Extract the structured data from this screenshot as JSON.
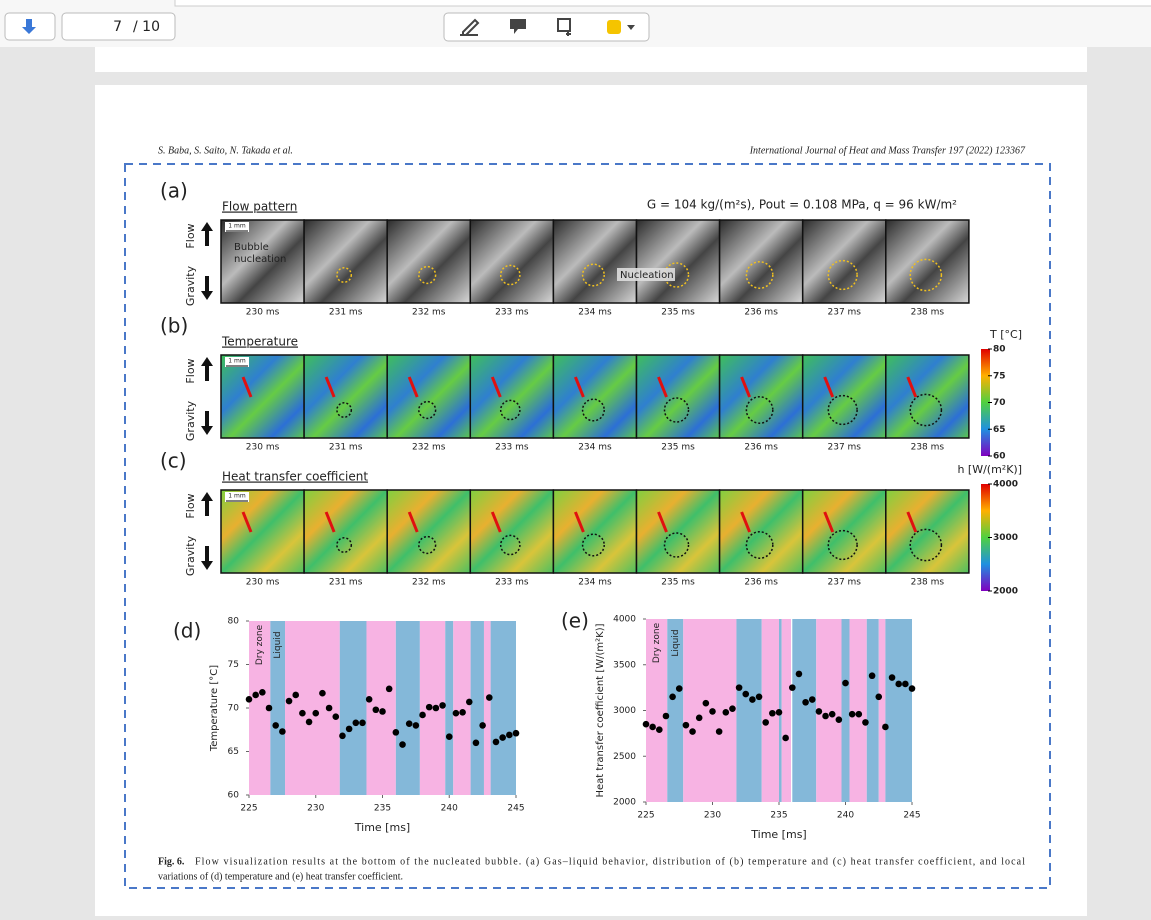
{
  "toolbar": {
    "page": "7",
    "page_count": "/ 10"
  },
  "header": {
    "authors": "S. Baba, S. Saito, N. Takada et al.",
    "journal": "International Journal of Heat and Mass Transfer 197 (2022) 123367"
  },
  "conditions": "G = 104 kg/(m²s), Pout = 0.108 MPa, q = 96 kW/m²",
  "direction_labels": {
    "flow": "Flow",
    "gravity": "Gravity"
  },
  "scale_bar": "1 mm",
  "annotations": {
    "bubble_nucleation": [
      "Bubble",
      "nucleation"
    ],
    "nucleation": "Nucleation"
  },
  "panels": [
    {
      "label": "(a)",
      "title": "Flow pattern",
      "times": [
        "230 ms",
        "231 ms",
        "232 ms",
        "233 ms",
        "234 ms",
        "235 ms",
        "236 ms",
        "237 ms",
        "238 ms"
      ]
    },
    {
      "label": "(b)",
      "title": "Temperature",
      "times": [
        "230 ms",
        "231 ms",
        "232 ms",
        "233 ms",
        "234 ms",
        "235 ms",
        "236 ms",
        "237 ms",
        "238 ms"
      ],
      "colorbar": {
        "title": "T [°C]",
        "lim": [
          60,
          80
        ],
        "ticks": [
          80,
          75,
          70,
          65,
          60
        ]
      }
    },
    {
      "label": "(c)",
      "title": "Heat transfer coefficient",
      "times": [
        "230 ms",
        "231 ms",
        "232 ms",
        "233 ms",
        "234 ms",
        "235 ms",
        "236 ms",
        "237 ms",
        "238 ms"
      ],
      "colorbar": {
        "title": "h [W/(m²K)]",
        "lim": [
          2000,
          4000
        ],
        "ticks": [
          4000,
          3000,
          2000
        ]
      }
    }
  ],
  "chart_data": [
    {
      "type": "scatter",
      "label": "(d)",
      "x_label": "Time [ms]",
      "y_label": "Temperature [°C]",
      "color": "#000000",
      "region_labels": [
        "Dry zone",
        "Liquid"
      ],
      "regions": [
        {
          "from": 225,
          "to": 226.6,
          "color": "#f7b3e3"
        },
        {
          "from": 226.6,
          "to": 227.7,
          "color": "#84b8d9"
        },
        {
          "from": 227.7,
          "to": 231.8,
          "color": "#f7b3e3"
        },
        {
          "from": 231.8,
          "to": 233.8,
          "color": "#84b8d9"
        },
        {
          "from": 233.8,
          "to": 236.0,
          "color": "#f7b3e3"
        },
        {
          "from": 236.0,
          "to": 237.8,
          "color": "#84b8d9"
        },
        {
          "from": 237.8,
          "to": 239.7,
          "color": "#f7b3e3"
        },
        {
          "from": 239.7,
          "to": 240.3,
          "color": "#84b8d9"
        },
        {
          "from": 240.3,
          "to": 241.6,
          "color": "#f7b3e3"
        },
        {
          "from": 241.6,
          "to": 242.6,
          "color": "#84b8d9"
        },
        {
          "from": 242.6,
          "to": 243.1,
          "color": "#f7b3e3"
        },
        {
          "from": 243.1,
          "to": 245,
          "color": "#84b8d9"
        }
      ],
      "x": [
        225,
        225.5,
        226,
        226.5,
        227,
        227.5,
        228,
        228.5,
        229,
        229.5,
        230,
        230.5,
        231,
        231.5,
        232,
        232.5,
        233,
        233.5,
        234,
        234.5,
        235,
        235.5,
        236,
        236.5,
        237,
        237.5,
        238,
        238.5,
        239,
        239.5,
        240,
        240.5,
        241,
        241.5,
        242,
        242.5,
        243,
        243.5,
        244,
        244.5,
        245
      ],
      "values": [
        71.0,
        71.5,
        71.8,
        70.0,
        68.0,
        67.3,
        70.8,
        71.5,
        69.4,
        68.4,
        69.4,
        71.7,
        70.0,
        69.0,
        66.8,
        67.6,
        68.3,
        68.3,
        71.0,
        69.8,
        69.6,
        72.2,
        67.2,
        65.8,
        68.2,
        68.0,
        69.2,
        70.1,
        70.0,
        70.3,
        66.7,
        69.4,
        69.5,
        70.7,
        66.0,
        68.0,
        71.2,
        66.1,
        66.6,
        66.9,
        67.1
      ],
      "xlim": [
        225,
        245
      ],
      "xticks": [
        225,
        230,
        235,
        240,
        245
      ],
      "ylim": [
        60,
        80
      ],
      "yticks": [
        60,
        65,
        70,
        75,
        80
      ]
    },
    {
      "type": "scatter",
      "label": "(e)",
      "x_label": "Time [ms]",
      "y_label": "Heat transfer coefficient [W/(m²K)]",
      "color": "#000000",
      "region_labels": [
        "Dry zone",
        "Liquid"
      ],
      "regions": [
        {
          "from": 225,
          "to": 226.6,
          "color": "#f7b3e3"
        },
        {
          "from": 226.6,
          "to": 227.8,
          "color": "#84b8d9"
        },
        {
          "from": 227.8,
          "to": 231.8,
          "color": "#f7b3e3"
        },
        {
          "from": 231.8,
          "to": 233.7,
          "color": "#84b8d9"
        },
        {
          "from": 233.7,
          "to": 235.0,
          "color": "#f7b3e3"
        },
        {
          "from": 235.0,
          "to": 235.2,
          "color": "#84b8d9"
        },
        {
          "from": 235.2,
          "to": 235.9,
          "color": "#f7b3e3"
        },
        {
          "from": 236.0,
          "to": 237.8,
          "color": "#84b8d9"
        },
        {
          "from": 237.8,
          "to": 239.7,
          "color": "#f7b3e3"
        },
        {
          "from": 239.7,
          "to": 240.3,
          "color": "#84b8d9"
        },
        {
          "from": 240.3,
          "to": 241.6,
          "color": "#f7b3e3"
        },
        {
          "from": 241.6,
          "to": 242.5,
          "color": "#84b8d9"
        },
        {
          "from": 242.5,
          "to": 243.0,
          "color": "#f7b3e3"
        },
        {
          "from": 243.0,
          "to": 245,
          "color": "#84b8d9"
        }
      ],
      "x": [
        225,
        225.5,
        226,
        226.5,
        227,
        227.5,
        228,
        228.5,
        229,
        229.5,
        230,
        230.5,
        231,
        231.5,
        232,
        232.5,
        233,
        233.5,
        234,
        234.5,
        235,
        235.5,
        236,
        236.5,
        237,
        237.5,
        238,
        238.5,
        239,
        239.5,
        240,
        240.5,
        241,
        241.5,
        242,
        242.5,
        243,
        243.5,
        244,
        244.5,
        245
      ],
      "values": [
        2850,
        2820,
        2790,
        2940,
        3150,
        3240,
        2840,
        2770,
        2920,
        3080,
        2990,
        2770,
        2980,
        3020,
        3250,
        3180,
        3120,
        3150,
        2870,
        2970,
        2980,
        2700,
        3250,
        3400,
        3090,
        3120,
        2990,
        2940,
        2960,
        2900,
        3300,
        2960,
        2960,
        2870,
        3380,
        3150,
        2820,
        3360,
        3290,
        3290,
        3240
      ],
      "xlim": [
        225,
        245
      ],
      "xticks": [
        225,
        230,
        235,
        240,
        245
      ],
      "ylim": [
        2000,
        4000
      ],
      "yticks": [
        2000,
        2500,
        3000,
        3500,
        4000
      ]
    }
  ],
  "caption": {
    "label": "Fig. 6.",
    "lines": [
      "Flow visualization results at the bottom of the nucleated bubble. (a) Gas–liquid behavior, distribution of (b) temperature and (c) heat transfer coefficient, and local",
      "variations of (d) temperature and (e) heat transfer coefficient."
    ]
  }
}
